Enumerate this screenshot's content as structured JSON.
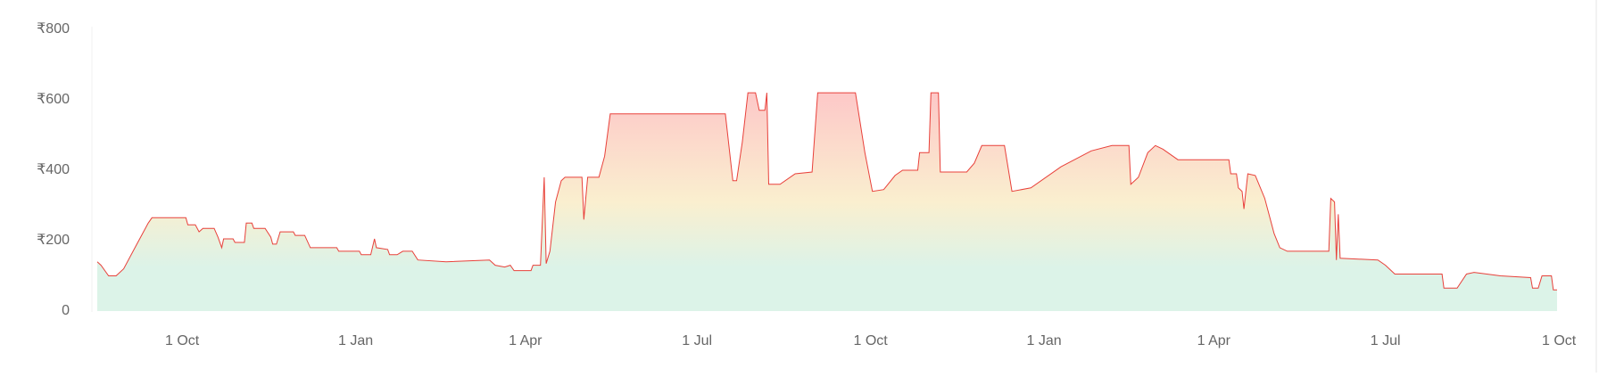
{
  "chart_data": {
    "type": "area",
    "x": [
      -45,
      -43,
      -39,
      -35,
      -31,
      -24,
      -18,
      -16,
      2,
      3,
      7,
      9,
      11,
      17,
      19,
      21,
      22,
      27,
      28,
      33,
      34,
      37,
      38,
      44,
      47,
      48,
      50,
      52,
      59,
      60,
      65,
      68,
      82,
      83,
      94,
      95,
      100,
      102,
      103,
      109,
      110,
      114,
      117,
      122,
      125,
      140,
      163,
      166,
      171,
      174,
      176,
      185,
      186,
      190,
      192,
      193,
      195,
      198,
      201,
      203,
      212,
      213,
      215,
      221,
      224,
      227,
      288,
      292,
      294,
      297,
      300,
      304,
      306,
      309,
      310,
      311,
      317,
      325,
      334,
      337,
      357,
      362,
      366,
      372,
      378,
      382,
      390,
      391,
      396,
      397,
      401,
      402,
      416,
      420,
      424,
      436,
      440,
      450,
      466,
      482,
      493,
      502,
      503,
      507,
      512,
      516,
      520,
      528,
      555,
      556,
      559,
      560,
      562,
      563,
      565,
      569,
      574,
      579,
      582,
      586,
      608,
      609,
      611,
      612,
      613,
      614,
      634,
      638,
      643,
      668,
      669,
      676,
      681,
      685,
      699,
      715,
      716,
      719,
      721,
      726,
      727,
      729
    ],
    "values": [
      140,
      130,
      100,
      100,
      120,
      190,
      250,
      265,
      265,
      245,
      245,
      225,
      235,
      235,
      210,
      180,
      205,
      205,
      195,
      195,
      250,
      250,
      235,
      235,
      210,
      190,
      190,
      225,
      225,
      215,
      215,
      180,
      180,
      170,
      170,
      160,
      160,
      205,
      180,
      175,
      160,
      160,
      170,
      170,
      145,
      140,
      145,
      130,
      125,
      130,
      115,
      115,
      130,
      130,
      380,
      135,
      170,
      310,
      370,
      380,
      380,
      260,
      380,
      380,
      440,
      560,
      560,
      370,
      370,
      480,
      620,
      620,
      570,
      570,
      620,
      360,
      360,
      390,
      395,
      620,
      620,
      450,
      340,
      345,
      385,
      400,
      400,
      450,
      450,
      620,
      620,
      395,
      395,
      420,
      470,
      470,
      340,
      350,
      410,
      455,
      470,
      470,
      360,
      380,
      450,
      470,
      460,
      430,
      430,
      390,
      390,
      350,
      340,
      290,
      390,
      385,
      320,
      220,
      180,
      170,
      170,
      320,
      310,
      145,
      275,
      150,
      145,
      130,
      105,
      105,
      65,
      65,
      105,
      110,
      100,
      95,
      65,
      65,
      100,
      100,
      60,
      60
    ],
    "color": "#e8403a",
    "xlim": [
      -45,
      729
    ],
    "xticks": [
      {
        "value": 0,
        "label": "1 Oct"
      },
      {
        "value": 92,
        "label": "1 Jan"
      },
      {
        "value": 182,
        "label": "1 Apr"
      },
      {
        "value": 273,
        "label": "1 Jul"
      },
      {
        "value": 365,
        "label": "1 Oct"
      },
      {
        "value": 457,
        "label": "1 Jan"
      },
      {
        "value": 547,
        "label": "1 Apr"
      },
      {
        "value": 638,
        "label": "1 Jul"
      },
      {
        "value": 730,
        "label": "1 Oct"
      }
    ],
    "ylim": [
      0,
      800
    ],
    "yticks": [
      0,
      {
        "value": 200,
        "label": "₹200"
      },
      {
        "value": 400,
        "label": "₹400"
      },
      {
        "value": 600,
        "label": "₹600"
      },
      {
        "value": 800,
        "label": "₹800"
      }
    ],
    "grid": false
  }
}
